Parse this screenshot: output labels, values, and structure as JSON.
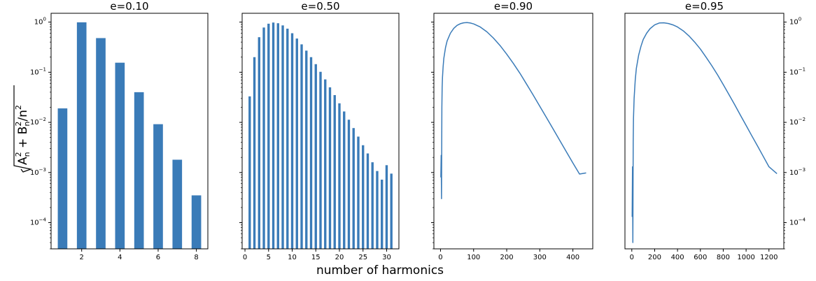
{
  "figure": {
    "xlabel": "number of harmonics",
    "ylabel": {
      "radicand": "A",
      "radicand_sub": "n",
      "radicand_sup": "2",
      "plus": " + ",
      "term": "B",
      "term_sub": "n",
      "term_sup": "2",
      "tail": "/n",
      "tail_sup": "2"
    },
    "series_color": "#3a7bb8",
    "yscale": "log",
    "ylim": [
      3e-05,
      1.5
    ],
    "yticks": [
      {
        "value": 1,
        "exp": "0"
      },
      {
        "value": 0.1,
        "exp": "−1"
      },
      {
        "value": 0.01,
        "exp": "−2"
      },
      {
        "value": 0.001,
        "exp": "−3"
      },
      {
        "value": 0.0001,
        "exp": "−4"
      }
    ],
    "ytick_base": "10"
  },
  "chart_data": [
    {
      "type": "bar",
      "title": "e=0.10",
      "xlim": [
        0.4,
        8.6
      ],
      "xticks": [
        2,
        4,
        6,
        8
      ],
      "ytick_side": "left",
      "x": [
        1,
        2,
        3,
        4,
        5,
        6,
        7,
        8
      ],
      "values": [
        0.019,
        0.99,
        0.48,
        0.155,
        0.04,
        0.0092,
        0.0018,
        0.00035
      ]
    },
    {
      "type": "bar",
      "title": "e=0.50",
      "xlim": [
        -0.6,
        32.6
      ],
      "xticks": [
        0,
        5,
        10,
        15,
        20,
        25,
        30
      ],
      "ytick_side": "left",
      "x": [
        1,
        2,
        3,
        4,
        5,
        6,
        7,
        8,
        9,
        10,
        11,
        12,
        13,
        14,
        15,
        16,
        17,
        18,
        19,
        20,
        21,
        22,
        23,
        24,
        25,
        26,
        27,
        28,
        29,
        30,
        31
      ],
      "values": [
        0.033,
        0.2,
        0.5,
        0.78,
        0.93,
        0.98,
        0.95,
        0.86,
        0.74,
        0.6,
        0.47,
        0.36,
        0.27,
        0.2,
        0.145,
        0.102,
        0.072,
        0.05,
        0.035,
        0.024,
        0.0165,
        0.0113,
        0.0077,
        0.0052,
        0.0035,
        0.0024,
        0.0016,
        0.00107,
        0.00072,
        0.0014,
        0.00095
      ]
    },
    {
      "type": "line",
      "title": "e=0.90",
      "xlim": [
        -20,
        460
      ],
      "xticks": [
        0,
        100,
        200,
        300,
        400
      ],
      "ytick_side": "left",
      "x": [
        1,
        2,
        3,
        4,
        5,
        6,
        8,
        10,
        15,
        20,
        30,
        40,
        50,
        60,
        70,
        80,
        90,
        100,
        120,
        140,
        160,
        180,
        200,
        220,
        240,
        260,
        280,
        300,
        320,
        340,
        360,
        380,
        400,
        420,
        440
      ],
      "y": [
        0.0008,
        0.0022,
        0.0003,
        0.02,
        0.05,
        0.08,
        0.13,
        0.19,
        0.31,
        0.42,
        0.6,
        0.75,
        0.86,
        0.93,
        0.97,
        0.98,
        0.96,
        0.92,
        0.8,
        0.64,
        0.48,
        0.34,
        0.23,
        0.15,
        0.095,
        0.058,
        0.035,
        0.021,
        0.0125,
        0.0074,
        0.0044,
        0.0026,
        0.00155,
        0.00093,
        0.00098
      ]
    },
    {
      "type": "line",
      "title": "e=0.95",
      "xlim": [
        -60,
        1330
      ],
      "xticks": [
        0,
        200,
        400,
        600,
        800,
        1000,
        1200
      ],
      "ytick_side": "right",
      "x": [
        3,
        6,
        9,
        12,
        15,
        20,
        30,
        40,
        60,
        80,
        100,
        130,
        160,
        200,
        240,
        280,
        320,
        360,
        400,
        450,
        500,
        550,
        600,
        650,
        700,
        750,
        800,
        850,
        900,
        950,
        1000,
        1050,
        1100,
        1150,
        1200,
        1270
      ],
      "y": [
        0.00013,
        0.0013,
        4e-05,
        0.004,
        0.012,
        0.03,
        0.07,
        0.12,
        0.22,
        0.33,
        0.45,
        0.6,
        0.74,
        0.88,
        0.96,
        0.97,
        0.94,
        0.88,
        0.8,
        0.67,
        0.53,
        0.4,
        0.29,
        0.2,
        0.135,
        0.089,
        0.057,
        0.036,
        0.0225,
        0.014,
        0.0087,
        0.0054,
        0.0034,
        0.0021,
        0.0013,
        0.00095
      ]
    }
  ]
}
